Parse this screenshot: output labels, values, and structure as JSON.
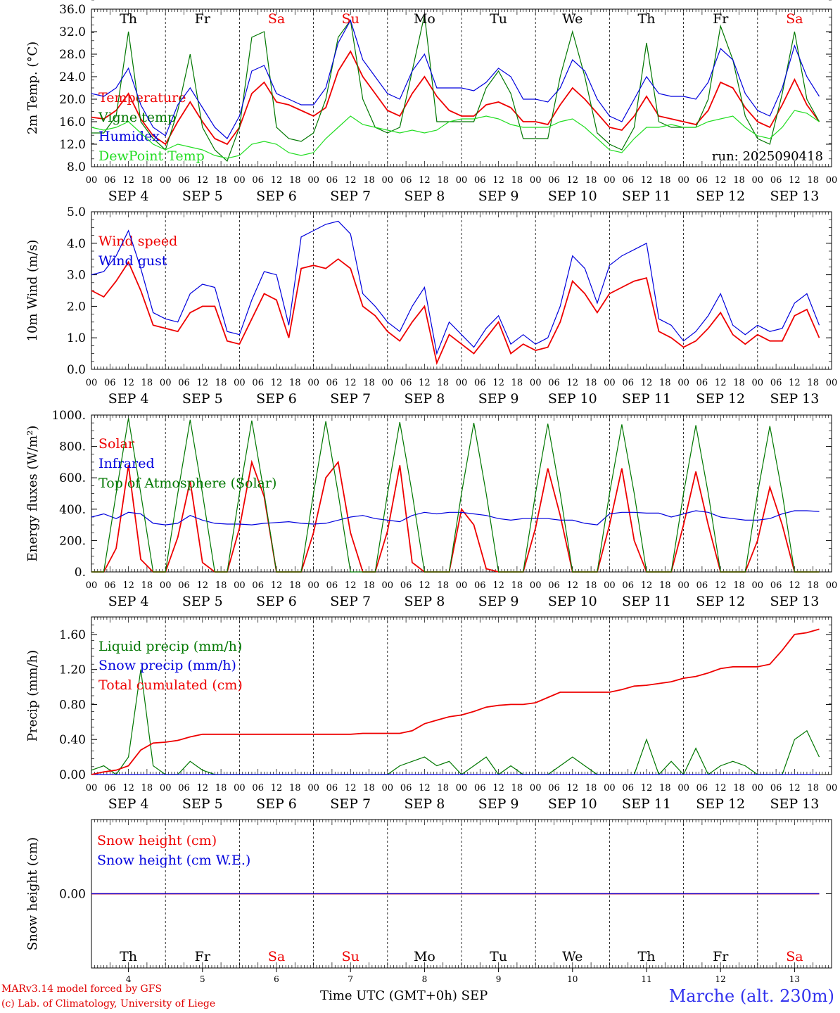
{
  "meta": {
    "credit_line1": "MARv3.14 model forced by GFS",
    "credit_line2": "(c) Lab. of Climatology, University of Liege",
    "xaxis_label": "Time UTC (GMT+0h)",
    "month_label": "SEP",
    "station": "Marche (alt. 230m)",
    "run": "run: 2025090418"
  },
  "days": [
    {
      "name": "Th",
      "date": "4",
      "weekend": false
    },
    {
      "name": "Fr",
      "date": "5",
      "weekend": false
    },
    {
      "name": "Sa",
      "date": "6",
      "weekend": true
    },
    {
      "name": "Su",
      "date": "7",
      "weekend": true
    },
    {
      "name": "Mo",
      "date": "8",
      "weekend": false
    },
    {
      "name": "Tu",
      "date": "9",
      "weekend": false
    },
    {
      "name": "We",
      "date": "10",
      "weekend": false
    },
    {
      "name": "Th",
      "date": "11",
      "weekend": false
    },
    {
      "name": "Fr",
      "date": "12",
      "weekend": false
    },
    {
      "name": "Sa",
      "date": "13",
      "weekend": true
    }
  ],
  "hour_ticks": [
    "00",
    "06",
    "12",
    "18"
  ],
  "last_hour_tick": "00",
  "date_prefix": "SEP",
  "colors": {
    "red": "#ee0000",
    "blue": "#0000dd",
    "green": "#007700",
    "lightgreen": "#22dd22",
    "weekend": "#ee0000"
  },
  "chart_data": [
    {
      "type": "line",
      "ylabel": "2m Temp. (°C)",
      "ylim": [
        8,
        36
      ],
      "yticks": [
        "8.0",
        "12.0",
        "16.0",
        "20.0",
        "24.0",
        "28.0",
        "32.0",
        "36.0"
      ],
      "x": "hours since SEP 4 00UTC (step 6h)",
      "annotation": "run: 2025090418",
      "series": [
        {
          "name": "Temperature",
          "color": "red",
          "values": [
            16.8,
            16.5,
            18,
            21,
            16.5,
            13.5,
            12,
            16,
            19.5,
            16,
            13,
            12,
            15,
            21,
            23,
            19.5,
            19,
            18,
            17,
            18.5,
            25,
            28.5,
            24,
            21,
            18,
            17,
            21,
            24,
            20.5,
            18,
            17,
            17,
            19,
            19.5,
            18.5,
            16,
            16,
            15.5,
            19,
            22,
            20,
            17.5,
            15,
            14.5,
            17,
            20.5,
            17,
            16.5,
            16,
            15.5,
            18,
            23,
            22,
            18.5,
            16,
            15,
            19,
            23.5,
            19,
            16
          ]
        },
        {
          "name": "Vigne temp",
          "color": "green",
          "values": [
            14,
            14,
            17,
            32,
            16,
            13,
            11,
            18,
            28,
            15,
            11,
            9,
            15,
            31,
            32,
            15,
            13,
            12.5,
            14,
            20,
            31,
            34,
            20,
            15,
            14,
            15,
            25,
            35,
            16,
            16,
            16,
            16,
            22,
            25,
            21,
            13,
            13,
            13,
            24,
            32,
            24,
            14,
            12,
            11,
            15,
            30,
            16,
            15,
            15,
            15,
            20,
            33,
            27,
            17,
            13,
            12,
            21,
            32,
            20,
            16
          ]
        },
        {
          "name": "Humidex",
          "color": "blue",
          "values": [
            21,
            20.5,
            22,
            25.5,
            19,
            15,
            13.5,
            19,
            22,
            18.5,
            15,
            13,
            17,
            25,
            26,
            21,
            20,
            19,
            19,
            22,
            30,
            34,
            27,
            24,
            21,
            20,
            25,
            28,
            22,
            22,
            22,
            21.5,
            23,
            25.5,
            24,
            20,
            20,
            19.5,
            22,
            27,
            25,
            20,
            17,
            16,
            20,
            24,
            21,
            20.5,
            20.5,
            20,
            23,
            29,
            27,
            21,
            18,
            17,
            22,
            29.5,
            24,
            20.5
          ]
        },
        {
          "name": "DewPoint Temp",
          "color": "lightgreen",
          "values": [
            15,
            14.5,
            15,
            16,
            14,
            12,
            11,
            12,
            11.5,
            11,
            10,
            9.5,
            10,
            12,
            12.5,
            12,
            10.5,
            10,
            10.5,
            13,
            15,
            17,
            15.5,
            15,
            14.5,
            14,
            14.5,
            14,
            14.5,
            16,
            16.5,
            16.5,
            17,
            16.5,
            15.5,
            15,
            15,
            15,
            16,
            16.5,
            15,
            13,
            11,
            10.5,
            13,
            15,
            15,
            15.5,
            15,
            15,
            16,
            16.5,
            17,
            15,
            13.5,
            13,
            15,
            18,
            17.5,
            16
          ]
        }
      ]
    },
    {
      "type": "line",
      "ylabel": "10m Wind (m/s)",
      "ylim": [
        0,
        5
      ],
      "yticks": [
        "0.0",
        "1.0",
        "2.0",
        "3.0",
        "4.0",
        "5.0"
      ],
      "series": [
        {
          "name": "Wind speed",
          "color": "red",
          "values": [
            2.5,
            2.3,
            2.8,
            3.4,
            2.5,
            1.4,
            1.3,
            1.2,
            1.8,
            2.0,
            2.0,
            0.9,
            0.8,
            1.6,
            2.4,
            2.2,
            1.0,
            3.2,
            3.3,
            3.2,
            3.5,
            3.2,
            2.0,
            1.7,
            1.2,
            0.9,
            1.5,
            2.0,
            0.2,
            1.1,
            0.8,
            0.5,
            1.0,
            1.5,
            0.5,
            0.8,
            0.6,
            0.7,
            1.5,
            2.8,
            2.4,
            1.8,
            2.4,
            2.6,
            2.8,
            2.9,
            1.2,
            1.0,
            0.7,
            0.9,
            1.3,
            1.8,
            1.1,
            0.8,
            1.1,
            0.9,
            0.9,
            1.7,
            1.9,
            1.0
          ]
        },
        {
          "name": "Wind gust",
          "color": "blue",
          "values": [
            3.0,
            3.1,
            3.6,
            4.4,
            3.2,
            1.8,
            1.6,
            1.5,
            2.4,
            2.7,
            2.6,
            1.2,
            1.1,
            2.2,
            3.1,
            3.0,
            1.4,
            4.2,
            4.4,
            4.6,
            4.7,
            4.3,
            2.4,
            2.0,
            1.5,
            1.2,
            2.0,
            2.6,
            0.5,
            1.5,
            1.1,
            0.7,
            1.3,
            1.7,
            0.8,
            1.1,
            0.8,
            1.0,
            2.0,
            3.6,
            3.2,
            2.1,
            3.3,
            3.6,
            3.8,
            4.0,
            1.6,
            1.4,
            0.9,
            1.2,
            1.7,
            2.4,
            1.4,
            1.1,
            1.4,
            1.2,
            1.3,
            2.1,
            2.4,
            1.4
          ]
        }
      ]
    },
    {
      "type": "line",
      "ylabel": "Energy fluxes (W/m²)",
      "ylim": [
        0,
        1000
      ],
      "yticks": [
        "0.",
        "200.",
        "400.",
        "600.",
        "800.",
        "1000."
      ],
      "series": [
        {
          "name": "Solar",
          "color": "red",
          "values": [
            0,
            0,
            150,
            680,
            80,
            0,
            0,
            220,
            580,
            60,
            0,
            0,
            280,
            700,
            480,
            0,
            0,
            0,
            250,
            600,
            700,
            250,
            0,
            0,
            260,
            680,
            60,
            0,
            0,
            0,
            400,
            300,
            20,
            0,
            0,
            0,
            280,
            660,
            360,
            0,
            0,
            0,
            300,
            660,
            200,
            0,
            0,
            0,
            300,
            640,
            300,
            0,
            0,
            0,
            200,
            540,
            300,
            0,
            0,
            0
          ]
        },
        {
          "name": "Infrared",
          "color": "blue",
          "values": [
            350,
            370,
            340,
            380,
            370,
            310,
            300,
            310,
            360,
            330,
            310,
            305,
            305,
            300,
            310,
            315,
            320,
            310,
            305,
            310,
            330,
            350,
            360,
            340,
            330,
            320,
            360,
            380,
            370,
            380,
            380,
            370,
            360,
            340,
            330,
            340,
            340,
            340,
            330,
            330,
            310,
            300,
            370,
            380,
            380,
            375,
            375,
            350,
            370,
            390,
            380,
            350,
            340,
            330,
            330,
            340,
            370,
            390,
            390,
            385
          ]
        },
        {
          "name": "Top of Atmosphere (Solar)",
          "color": "green",
          "values": [
            0,
            0,
            500,
            980,
            500,
            0,
            0,
            500,
            970,
            500,
            0,
            0,
            500,
            965,
            500,
            0,
            0,
            0,
            500,
            960,
            500,
            0,
            0,
            0,
            500,
            955,
            500,
            0,
            0,
            0,
            500,
            950,
            500,
            0,
            0,
            0,
            500,
            945,
            500,
            0,
            0,
            0,
            500,
            940,
            500,
            0,
            0,
            0,
            500,
            935,
            500,
            0,
            0,
            0,
            500,
            930,
            500,
            0,
            0,
            0
          ]
        }
      ]
    },
    {
      "type": "line",
      "ylabel": "Precip (mm/h)",
      "ylim": [
        0,
        1.8
      ],
      "yticks": [
        "0.00",
        "0.40",
        "0.80",
        "1.20",
        "1.60"
      ],
      "series": [
        {
          "name": "Liquid precip (mm/h)",
          "color": "green",
          "values": [
            0.05,
            0.1,
            0.0,
            0.2,
            1.2,
            0.1,
            0.0,
            0.0,
            0.15,
            0.05,
            0.0,
            0.0,
            0.0,
            0.0,
            0.0,
            0.0,
            0.0,
            0.0,
            0.0,
            0.0,
            0.0,
            0.0,
            0.0,
            0.0,
            0.0,
            0.1,
            0.15,
            0.2,
            0.1,
            0.15,
            0.0,
            0.1,
            0.2,
            0.0,
            0.1,
            0.0,
            0.0,
            0.0,
            0.1,
            0.2,
            0.1,
            0.0,
            0.0,
            0.0,
            0.0,
            0.4,
            0.0,
            0.15,
            0.0,
            0.3,
            0.0,
            0.1,
            0.15,
            0.1,
            0.0,
            0.0,
            0.0,
            0.4,
            0.5,
            0.2
          ]
        },
        {
          "name": "Snow precip (mm/h)",
          "color": "blue",
          "values": [
            0,
            0,
            0,
            0,
            0,
            0,
            0,
            0,
            0,
            0,
            0,
            0,
            0,
            0,
            0,
            0,
            0,
            0,
            0,
            0,
            0,
            0,
            0,
            0,
            0,
            0,
            0,
            0,
            0,
            0,
            0,
            0,
            0,
            0,
            0,
            0,
            0,
            0,
            0,
            0,
            0,
            0,
            0,
            0,
            0,
            0,
            0,
            0,
            0,
            0,
            0,
            0,
            0,
            0,
            0,
            0,
            0,
            0,
            0,
            0
          ]
        },
        {
          "name": "Total cumulated (cm)",
          "color": "red",
          "values": [
            0.0,
            0.03,
            0.05,
            0.1,
            0.28,
            0.36,
            0.37,
            0.39,
            0.43,
            0.46,
            0.46,
            0.46,
            0.46,
            0.46,
            0.46,
            0.46,
            0.46,
            0.46,
            0.46,
            0.46,
            0.46,
            0.46,
            0.47,
            0.47,
            0.47,
            0.47,
            0.5,
            0.58,
            0.62,
            0.66,
            0.68,
            0.72,
            0.77,
            0.79,
            0.8,
            0.8,
            0.82,
            0.88,
            0.94,
            0.94,
            0.94,
            0.94,
            0.94,
            0.97,
            1.01,
            1.02,
            1.04,
            1.06,
            1.1,
            1.12,
            1.16,
            1.21,
            1.23,
            1.23,
            1.23,
            1.26,
            1.42,
            1.6,
            1.62,
            1.66
          ]
        }
      ]
    },
    {
      "type": "line",
      "ylabel": "Snow height (cm)",
      "ylim": [
        -1,
        1
      ],
      "yticks": [
        "0.00"
      ],
      "series": [
        {
          "name": "Snow height (cm)",
          "color": "red",
          "values": [
            0,
            0,
            0,
            0,
            0,
            0,
            0,
            0,
            0,
            0,
            0,
            0,
            0,
            0,
            0,
            0,
            0,
            0,
            0,
            0,
            0,
            0,
            0,
            0,
            0,
            0,
            0,
            0,
            0,
            0,
            0,
            0,
            0,
            0,
            0,
            0,
            0,
            0,
            0,
            0,
            0,
            0,
            0,
            0,
            0,
            0,
            0,
            0,
            0,
            0,
            0,
            0,
            0,
            0,
            0,
            0,
            0,
            0,
            0,
            0
          ]
        },
        {
          "name": "Snow height (cm W.E.)",
          "color": "blue",
          "values": [
            0,
            0,
            0,
            0,
            0,
            0,
            0,
            0,
            0,
            0,
            0,
            0,
            0,
            0,
            0,
            0,
            0,
            0,
            0,
            0,
            0,
            0,
            0,
            0,
            0,
            0,
            0,
            0,
            0,
            0,
            0,
            0,
            0,
            0,
            0,
            0,
            0,
            0,
            0,
            0,
            0,
            0,
            0,
            0,
            0,
            0,
            0,
            0,
            0,
            0,
            0,
            0,
            0,
            0,
            0,
            0,
            0,
            0,
            0,
            0
          ]
        }
      ]
    }
  ]
}
